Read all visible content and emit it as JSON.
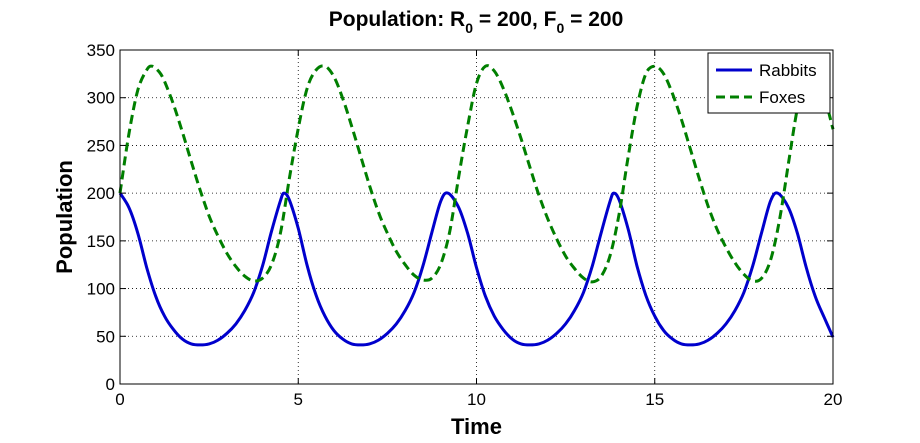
{
  "chart_data": {
    "type": "line",
    "title": {
      "prefix": "Population: R",
      "sub1": "0",
      "mid": " = 200, F",
      "sub2": "0",
      "suffix": " = 200"
    },
    "xlabel": "Time",
    "ylabel": "Population",
    "xlim": [
      0,
      20
    ],
    "ylim": [
      0,
      350
    ],
    "xticks": [
      0,
      5,
      10,
      15,
      20
    ],
    "yticks": [
      0,
      50,
      100,
      150,
      200,
      250,
      300,
      350
    ],
    "grid": true,
    "legend_position": "top-right",
    "series": [
      {
        "name": "Rabbits",
        "color": "#0000CC",
        "style": "solid",
        "x": [
          0.0,
          0.25,
          0.5,
          0.75,
          1.0,
          1.25,
          1.5,
          1.75,
          2.0,
          2.25,
          2.5,
          2.75,
          3.0,
          3.25,
          3.5,
          3.75,
          4.0,
          4.25,
          4.5,
          4.6,
          4.75,
          5.0,
          5.25,
          5.5,
          5.75,
          6.0,
          6.25,
          6.5,
          6.75,
          7.0,
          7.25,
          7.5,
          7.75,
          8.0,
          8.25,
          8.5,
          8.75,
          9.0,
          9.2,
          9.5,
          9.75,
          10.0,
          10.25,
          10.5,
          10.75,
          11.0,
          11.25,
          11.5,
          11.75,
          12.0,
          12.25,
          12.5,
          12.75,
          13.0,
          13.25,
          13.5,
          13.75,
          13.85,
          14.0,
          14.25,
          14.5,
          14.75,
          15.0,
          15.25,
          15.5,
          15.75,
          16.0,
          16.25,
          16.5,
          16.75,
          17.0,
          17.25,
          17.5,
          17.75,
          18.0,
          18.25,
          18.45,
          18.75,
          19.0,
          19.25,
          19.5,
          19.75,
          20.0
        ],
        "y": [
          200,
          185,
          158,
          122,
          92,
          71,
          57,
          47,
          42,
          41,
          42,
          46,
          53,
          63,
          77,
          96,
          124,
          160,
          192,
          200,
          193,
          163,
          124,
          93,
          71,
          56,
          47,
          42,
          41,
          42,
          46,
          53,
          63,
          77,
          96,
          124,
          159,
          192,
          200,
          185,
          158,
          122,
          92,
          71,
          57,
          47,
          42,
          41,
          42,
          46,
          53,
          63,
          77,
          96,
          124,
          159,
          192,
          200,
          193,
          163,
          124,
          93,
          71,
          56,
          47,
          42,
          41,
          42,
          46,
          53,
          63,
          77,
          96,
          124,
          159,
          192,
          200,
          185,
          158,
          122,
          92,
          70,
          49
        ]
      },
      {
        "name": "Foxes",
        "color": "#007F00",
        "style": "dashed",
        "x": [
          0.0,
          0.25,
          0.5,
          0.75,
          0.9,
          1.1,
          1.25,
          1.5,
          1.75,
          2.0,
          2.25,
          2.5,
          2.75,
          3.0,
          3.25,
          3.5,
          3.75,
          4.0,
          4.25,
          4.5,
          4.75,
          5.0,
          5.25,
          5.5,
          5.75,
          6.0,
          6.25,
          6.5,
          6.75,
          7.0,
          7.25,
          7.5,
          7.75,
          8.0,
          8.25,
          8.5,
          8.75,
          9.0,
          9.25,
          9.5,
          9.75,
          10.0,
          10.25,
          10.5,
          10.75,
          11.0,
          11.25,
          11.5,
          11.75,
          12.0,
          12.25,
          12.5,
          12.75,
          13.0,
          13.25,
          13.5,
          13.75,
          14.0,
          14.25,
          14.5,
          14.75,
          15.0,
          15.25,
          15.5,
          15.75,
          16.0,
          16.25,
          16.5,
          16.75,
          17.0,
          17.25,
          17.5,
          17.75,
          18.0,
          18.25,
          18.5,
          18.75,
          19.0,
          19.25,
          19.5,
          19.75,
          20.0
        ],
        "y": [
          200,
          262,
          308,
          329,
          333,
          327,
          317,
          293,
          264,
          233,
          203,
          176,
          155,
          137,
          123,
          113,
          108,
          111,
          125,
          158,
          215,
          268,
          310,
          329,
          333,
          322,
          299,
          270,
          239,
          208,
          180,
          158,
          139,
          125,
          114,
          109,
          111,
          126,
          160,
          217,
          270,
          315,
          333,
          328,
          310,
          285,
          257,
          227,
          198,
          173,
          152,
          134,
          121,
          111,
          107,
          113,
          135,
          178,
          237,
          290,
          325,
          333,
          325,
          304,
          277,
          246,
          215,
          186,
          162,
          143,
          127,
          115,
          108,
          111,
          130,
          172,
          231,
          289,
          327,
          333,
          303,
          267
        ]
      }
    ]
  }
}
